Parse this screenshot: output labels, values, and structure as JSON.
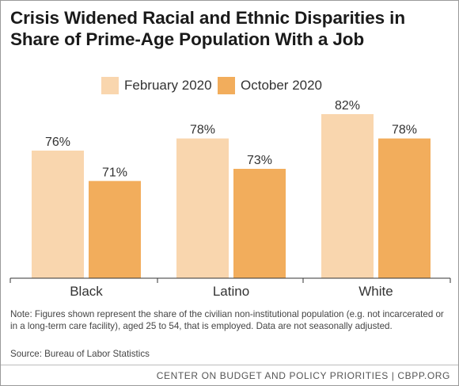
{
  "title_line1": "Crisis Widened Racial and Ethnic Disparities in",
  "title_line2": "Share of Prime-Age Population With a Job",
  "chart_data": {
    "type": "bar",
    "categories": [
      "Black",
      "Latino",
      "White"
    ],
    "series": [
      {
        "name": "February 2020",
        "values": [
          76,
          78,
          82
        ],
        "labels": [
          "76%",
          "78%",
          "82%"
        ],
        "color": "#f9d6ae"
      },
      {
        "name": "October 2020",
        "values": [
          71,
          73,
          78
        ],
        "labels": [
          "71%",
          "73%",
          "78%"
        ],
        "color": "#f2ad5c"
      }
    ],
    "ylim": [
      55,
      85
    ],
    "grid": false,
    "legend_position": "top"
  },
  "note": "Note:  Figures shown represent the share of the civilian non-institutional population (e.g. not incarcerated or in a long-term care facility), aged 25 to 54, that is employed. Data are not seasonally adjusted.",
  "source": "Source: Bureau of Labor Statistics",
  "footer": "CENTER ON BUDGET AND POLICY PRIORITIES | CBPP.ORG"
}
